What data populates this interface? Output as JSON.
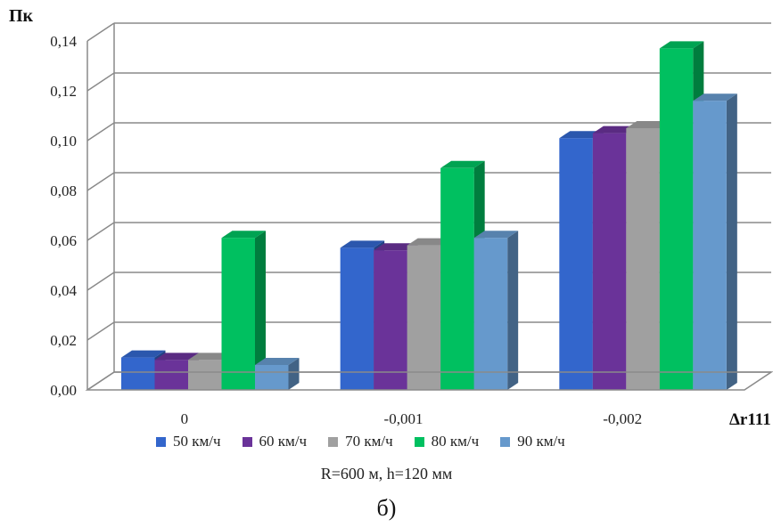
{
  "chart_data": {
    "type": "bar",
    "ylabel": "Пк",
    "xlabel": "Δr111",
    "categories": [
      "0",
      "-0,001",
      "-0,002"
    ],
    "ylim": [
      0,
      0.14
    ],
    "yticks": [
      "0,00",
      "0,02",
      "0,04",
      "0,06",
      "0,08",
      "0,10",
      "0,12",
      "0,14"
    ],
    "series": [
      {
        "name": "50 км/ч",
        "color": "#3366cc",
        "values": [
          0.013,
          0.057,
          0.101
        ]
      },
      {
        "name": "60 км/ч",
        "color": "#6a3399",
        "values": [
          0.012,
          0.056,
          0.103
        ]
      },
      {
        "name": "70 км/ч",
        "color": "#a0a0a0",
        "values": [
          0.012,
          0.058,
          0.105
        ]
      },
      {
        "name": "80 км/ч",
        "color": "#00c060",
        "values": [
          0.061,
          0.089,
          0.137
        ]
      },
      {
        "name": "90 км/ч",
        "color": "#6699cc",
        "values": [
          0.01,
          0.061,
          0.116
        ]
      }
    ],
    "grid": true,
    "legend_position": "bottom",
    "style": "3d-clustered"
  },
  "subtitle": "R=600 м, h=120 мм",
  "caption": "б)"
}
